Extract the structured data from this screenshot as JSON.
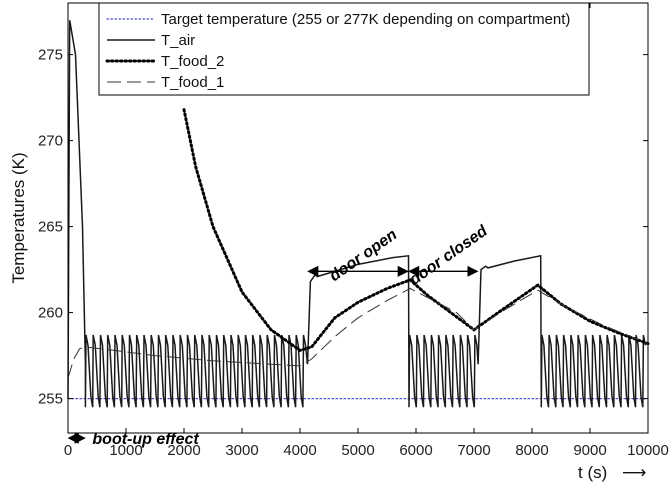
{
  "chart_data": {
    "type": "line",
    "xlabel": "t (s)",
    "ylabel": "Temperatures (K)",
    "xlim": [
      0,
      10000
    ],
    "ylim": [
      253,
      278
    ],
    "x_ticks": [
      0,
      1000,
      2000,
      3000,
      4000,
      5000,
      6000,
      7000,
      8000,
      9000,
      10000
    ],
    "y_ticks": [
      255,
      260,
      265,
      270,
      275
    ],
    "grid": false,
    "legend_position": "top",
    "series": [
      {
        "name": "Target temperature (255 or 277K depending on compartment)",
        "style": "dotted",
        "color": "#4a4ad8",
        "x": [
          0,
          10000
        ],
        "y": [
          255,
          255
        ]
      },
      {
        "name": "T_air",
        "style": "solid",
        "color": "#1a1a1a",
        "oscillation": {
          "period_s": 125,
          "low_K": 254.5,
          "high_K": 258.7
        },
        "segments": [
          {
            "mode": "spike",
            "x": [
              0,
              30,
              130,
              250,
              300
            ],
            "y": [
              255,
              277,
              275,
              265,
              257
            ]
          },
          {
            "mode": "oscillate",
            "x_start": 300,
            "x_end": 4130
          },
          {
            "mode": "ramp",
            "x": [
              4130,
              4180,
              4260,
              4300,
              5000,
              5600,
              5870
            ],
            "y": [
              257,
              261.8,
              262.2,
              262.1,
              262.8,
              263.2,
              263.3
            ]
          },
          {
            "mode": "oscillate",
            "x_start": 5880,
            "x_end": 7070
          },
          {
            "mode": "ramp",
            "x": [
              7070,
              7120,
              7200,
              7240,
              7700,
              8150
            ],
            "y": [
              257,
              262.5,
              262.7,
              262.6,
              263.0,
              263.3
            ]
          },
          {
            "mode": "oscillate",
            "x_start": 8160,
            "x_end": 10000
          }
        ]
      },
      {
        "name": "T_food_2",
        "style": "dotted",
        "color": "#000000",
        "x": [
          2000,
          2200,
          2500,
          3000,
          3500,
          4000,
          4200,
          4600,
          5000,
          5500,
          5900,
          6200,
          6600,
          7000,
          7500,
          8100,
          8500,
          9000,
          9500,
          10000
        ],
        "y": [
          271.8,
          268.5,
          265.0,
          261.2,
          259.0,
          257.8,
          258.0,
          259.7,
          260.6,
          261.4,
          261.9,
          261.0,
          260.0,
          259.0,
          260.2,
          261.6,
          260.5,
          259.5,
          258.8,
          258.2
        ]
      },
      {
        "name": "T_food_1",
        "style": "dashed",
        "color": "#333333",
        "x": [
          0,
          100,
          200,
          300,
          800,
          1500,
          2500,
          3500,
          4000,
          4200,
          4600,
          5000,
          5500,
          5900,
          6300,
          6700,
          7000,
          7500,
          8100,
          8600,
          9200,
          9700,
          10000
        ],
        "y": [
          256.2,
          257.3,
          257.9,
          258.0,
          257.8,
          257.5,
          257.2,
          257.0,
          256.9,
          257.3,
          258.6,
          259.7,
          260.7,
          261.4,
          260.7,
          260.0,
          259.0,
          260.1,
          261.3,
          260.3,
          259.3,
          258.6,
          258.2
        ]
      }
    ],
    "annotations": [
      {
        "text": "door open",
        "arrow_x": [
          4130,
          5870
        ],
        "arrow_y": 262.4
      },
      {
        "text": "door closed",
        "arrow_x": [
          5870,
          7070
        ],
        "arrow_y": 262.4
      },
      {
        "text": "boot-up effect",
        "arrow_x": [
          0,
          300
        ],
        "arrow_y": 252.7
      }
    ],
    "axis_arrow": "⟶"
  }
}
